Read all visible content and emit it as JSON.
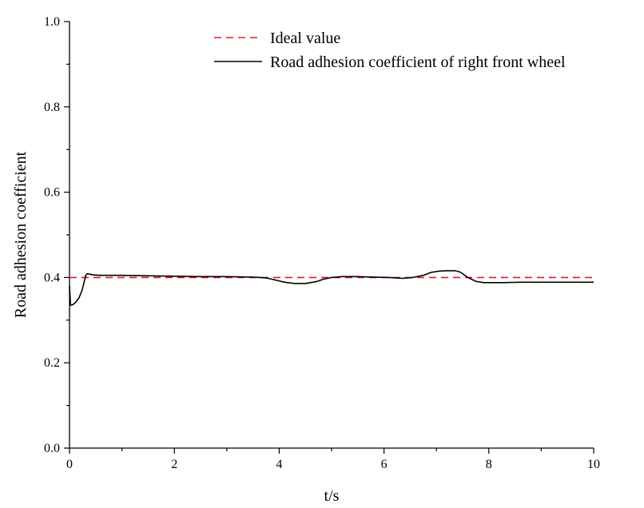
{
  "chart_data": {
    "type": "line",
    "title": "",
    "xlabel": "t/s",
    "ylabel": "Road adhesion coefficient",
    "xlim": [
      0,
      10
    ],
    "ylim": [
      0.0,
      1.0
    ],
    "x_ticks": [
      "0",
      "2",
      "4",
      "6",
      "8",
      "10"
    ],
    "y_ticks": [
      "0.0",
      "0.2",
      "0.4",
      "0.6",
      "0.8",
      "1.0"
    ],
    "grid": false,
    "legend_position": "top-right",
    "series": [
      {
        "name": "Ideal value",
        "color": "#e41a1c",
        "style": "dashed",
        "x": [
          0,
          10
        ],
        "y": [
          0.4,
          0.4
        ]
      },
      {
        "name": "Road adhesion coefficient of right front wheel",
        "color": "#000000",
        "style": "solid",
        "x": [
          0,
          0.02,
          0.06,
          0.12,
          0.18,
          0.24,
          0.28,
          0.31,
          0.34,
          0.38,
          0.45,
          0.6,
          1.0,
          1.5,
          2.0,
          2.5,
          3.0,
          3.5,
          3.75,
          3.9,
          4.1,
          4.3,
          4.5,
          4.7,
          4.85,
          5.0,
          5.2,
          5.5,
          5.8,
          6.1,
          6.35,
          6.55,
          6.75,
          6.9,
          7.05,
          7.2,
          7.35,
          7.45,
          7.6,
          7.75,
          7.9,
          8.0,
          8.3,
          8.6,
          9.0,
          9.5,
          10.0
        ],
        "y": [
          0.38,
          0.335,
          0.336,
          0.342,
          0.352,
          0.37,
          0.39,
          0.405,
          0.409,
          0.408,
          0.406,
          0.405,
          0.405,
          0.404,
          0.403,
          0.402,
          0.402,
          0.401,
          0.399,
          0.395,
          0.389,
          0.386,
          0.386,
          0.39,
          0.396,
          0.4,
          0.402,
          0.402,
          0.401,
          0.4,
          0.398,
          0.4,
          0.405,
          0.412,
          0.415,
          0.416,
          0.416,
          0.413,
          0.4,
          0.391,
          0.388,
          0.388,
          0.388,
          0.389,
          0.389,
          0.389,
          0.389
        ]
      }
    ]
  }
}
